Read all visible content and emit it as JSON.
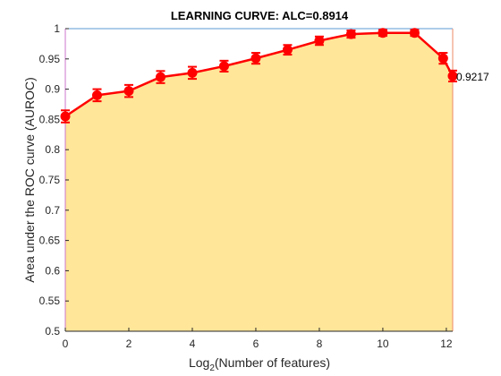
{
  "chart_data": {
    "type": "area",
    "title": "LEARNING CURVE: ALC=0.8914",
    "xlabel": {
      "prefix": "Log",
      "subscript": "2",
      "suffix": "(Number of features)"
    },
    "ylabel": "Area under the ROC curve (AUROC)",
    "xlim": [
      0,
      12.2
    ],
    "ylim": [
      0.5,
      1
    ],
    "xticks": [
      0,
      2,
      4,
      6,
      8,
      10,
      12
    ],
    "xtick_labels": [
      "0",
      "2",
      "4",
      "6",
      "8",
      "10",
      "12"
    ],
    "yticks": [
      0.5,
      0.55,
      0.6,
      0.65,
      0.7,
      0.75,
      0.8,
      0.85,
      0.9,
      0.95,
      1
    ],
    "ytick_labels": [
      "0.5",
      "0.55",
      "0.6",
      "0.65",
      "0.7",
      "0.75",
      "0.8",
      "0.85",
      "0.9",
      "0.95",
      "1"
    ],
    "grid": false,
    "series": [
      {
        "x": [
          0,
          1,
          2,
          3,
          4,
          5,
          6,
          7,
          8,
          9,
          10,
          11,
          11.9,
          12.2
        ],
        "y": [
          0.855,
          0.89,
          0.897,
          0.92,
          0.927,
          0.938,
          0.951,
          0.965,
          0.98,
          0.991,
          0.993,
          0.993,
          0.951,
          0.9217
        ],
        "error": [
          0.01,
          0.01,
          0.01,
          0.01,
          0.01,
          0.009,
          0.009,
          0.008,
          0.007,
          0.006,
          0.005,
          0.005,
          0.009,
          0.009
        ]
      }
    ],
    "end_label": "0.9217",
    "colors": {
      "line": "#ff0000",
      "fill": "#ffe699",
      "frame_top": "#5b9bd5",
      "frame_left": "#cc77cc",
      "frame_right": "#ee8866"
    }
  }
}
